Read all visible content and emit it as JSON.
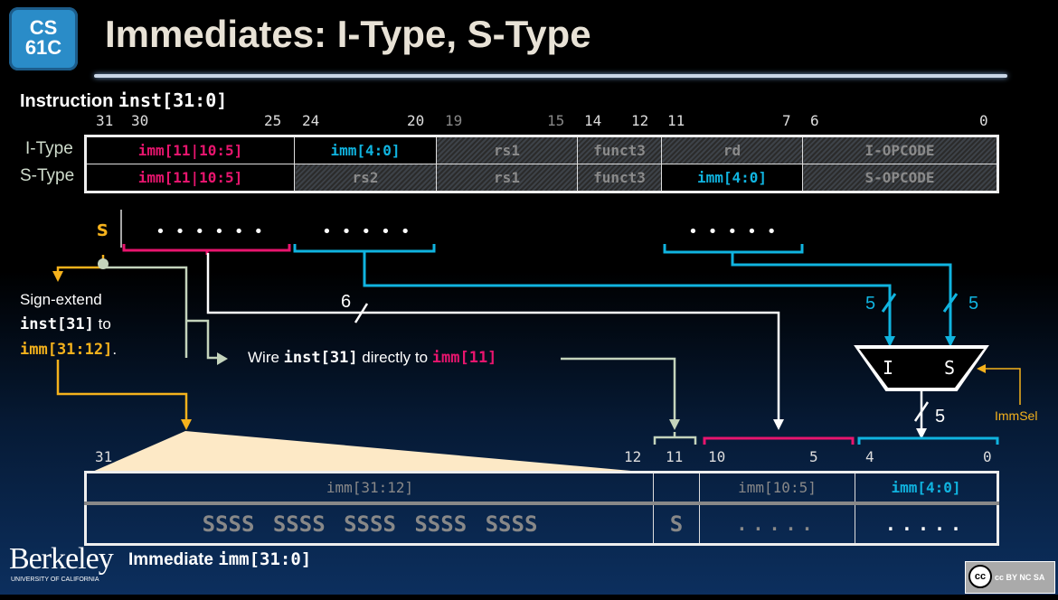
{
  "header": {
    "logo": "CS 61C",
    "title": "Immediates: I-Type, S-Type"
  },
  "instruction": {
    "label_prefix": "Instruction ",
    "label_code": "inst[31:0]",
    "bits": [
      "31",
      "30",
      "25",
      "24",
      "20",
      "19",
      "15",
      "14",
      "12",
      "11",
      "7",
      "6",
      "0"
    ],
    "rows": [
      {
        "name": "I-Type",
        "cells": [
          "imm[11|10:5]",
          "imm[4:0]",
          "rs1",
          "funct3",
          "rd",
          "I-OPCODE"
        ]
      },
      {
        "name": "S-Type",
        "cells": [
          "imm[11|10:5]",
          "rs2",
          "rs1",
          "funct3",
          "imm[4:0]",
          "S-OPCODE"
        ]
      }
    ]
  },
  "diagram": {
    "sign_bit": "s",
    "dots6": "• • • • • •",
    "dots5a": "• • • • •",
    "dots5b": "• • • • •",
    "width6": "6",
    "width5_i": "5",
    "width5_s": "5",
    "width5_out": "5",
    "mux_in_i": "I",
    "mux_in_s": "S",
    "mux_select": "ImmSel",
    "sign_extend": {
      "t1": "Sign-extend",
      "c1": "inst[31]",
      "t2": " to",
      "c2": "imm[31:12]",
      "t3": "."
    },
    "wire_note": {
      "t1": "Wire ",
      "c1": "inst[31]",
      "t2": " directly to ",
      "c2": "imm[11]"
    }
  },
  "immediate": {
    "bits": [
      "31",
      "12",
      "11",
      "10",
      "5",
      "4",
      "0"
    ],
    "headers": [
      "imm[31:12]",
      "",
      "imm[10:5]",
      "imm[4:0]"
    ],
    "values": [
      "SSSS SSSS SSSS SSSS SSSS",
      "S",
      ".....",
      "....."
    ],
    "label_prefix": "Immediate ",
    "label_code": "imm[31:0]"
  },
  "footer": {
    "berkeley": "Berkeley",
    "berkeley_sub": "UNIVERSITY OF CALIFORNIA",
    "license": "cc BY NC SA"
  },
  "colors": {
    "pink": "#e8156e",
    "cyan": "#10b4e0",
    "yellow": "#f5b21c",
    "sage": "#c4d4bc"
  }
}
